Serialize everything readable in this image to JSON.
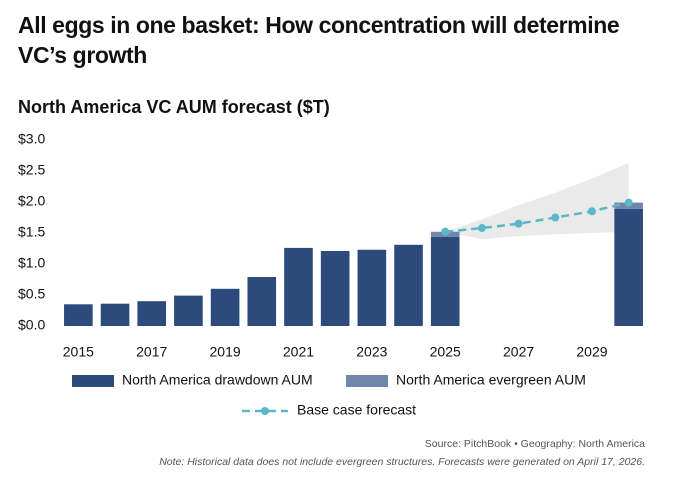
{
  "chart_data": {
    "type": "bar",
    "title": [
      "All eggs in one basket: How concentration will determine",
      "VC’s growth"
    ],
    "subtitle": "North America VC AUM forecast ($T)",
    "x": [
      2015,
      2016,
      2017,
      2018,
      2019,
      2020,
      2021,
      2022,
      2023,
      2024,
      2025,
      2026,
      2027,
      2028,
      2029,
      2030
    ],
    "xlim": [
      2014.5,
      2030.5
    ],
    "xticks": [
      2015,
      2017,
      2019,
      2021,
      2023,
      2025,
      2027,
      2029
    ],
    "ylim": [
      0,
      3
    ],
    "yticks": [
      {
        "value": 0,
        "label": "$0.0"
      },
      {
        "value": 0.5,
        "label": "$0.5"
      },
      {
        "value": 1,
        "label": "$1.0"
      },
      {
        "value": 1.5,
        "label": "$1.5"
      },
      {
        "value": 2,
        "label": "$2.0"
      },
      {
        "value": 2.5,
        "label": "$2.5"
      },
      {
        "value": 3,
        "label": "$3.0"
      }
    ],
    "series": [
      {
        "name": "North America drawdown AUM",
        "kind": "bar",
        "color": "#2c4a7c",
        "values": [
          0.35,
          0.36,
          0.4,
          0.49,
          0.6,
          0.79,
          1.26,
          1.21,
          1.23,
          1.31,
          1.44,
          null,
          null,
          null,
          null,
          1.89
        ]
      },
      {
        "name": "North America evergreen AUM",
        "kind": "bar",
        "color": "#6f87a8",
        "values": [
          null,
          null,
          null,
          null,
          null,
          null,
          null,
          null,
          null,
          null,
          0.08,
          null,
          null,
          null,
          null,
          0.1
        ]
      },
      {
        "name": "Base case forecast",
        "kind": "line",
        "color": "#5bb8c8",
        "values": [
          null,
          null,
          null,
          null,
          null,
          null,
          null,
          null,
          null,
          null,
          1.52,
          1.58,
          1.65,
          1.75,
          1.85,
          1.99
        ]
      }
    ],
    "range": {
      "color": "#e6e6e6",
      "lower": [
        null,
        null,
        null,
        null,
        null,
        null,
        null,
        null,
        null,
        null,
        1.52,
        1.4,
        1.45,
        1.48,
        1.5,
        1.52
      ],
      "upper": [
        null,
        null,
        null,
        null,
        null,
        null,
        null,
        null,
        null,
        null,
        1.52,
        1.72,
        1.95,
        2.15,
        2.38,
        2.63
      ]
    },
    "source": "Source: PitchBook  •  Geography: North America",
    "note": "Note: Historical data does not include evergreen structures. Forecasts were generated on April 17, 2026."
  }
}
